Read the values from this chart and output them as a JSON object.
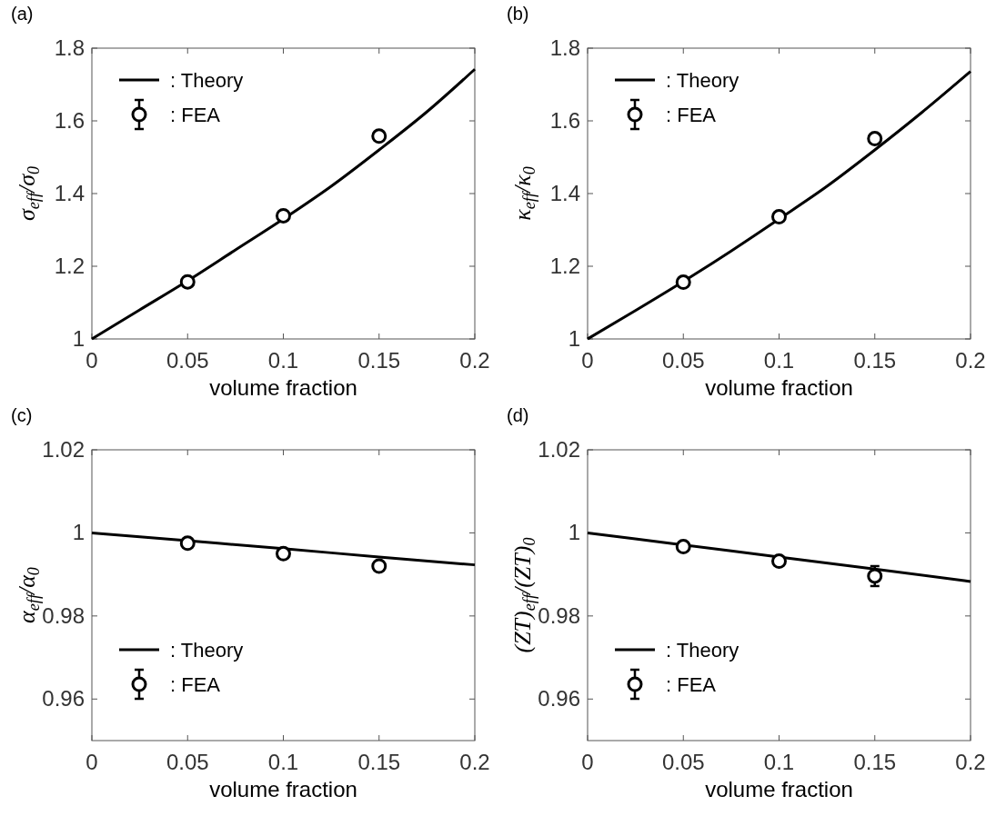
{
  "chart_data": [
    {
      "type": "line",
      "title": "(a)",
      "xlabel": "volume fraction",
      "ylabel": "σ$_{eff}$/σ$_{0}$",
      "xlim": [
        0,
        0.2
      ],
      "xticks": [
        0,
        0.05,
        0.1,
        0.15,
        0.2
      ],
      "ylim": [
        1,
        1.8
      ],
      "yticks": [
        1,
        1.2,
        1.4,
        1.6,
        1.8
      ],
      "grid": false,
      "legend": "top left",
      "series": [
        {
          "name": ": Theory",
          "type": "line",
          "color": "#000000",
          "marker": "none",
          "line_style": "solid",
          "x": [
            0,
            0.025,
            0.05,
            0.075,
            0.1,
            0.125,
            0.15,
            0.175,
            0.2
          ],
          "values": [
            1,
            1.08,
            1.16,
            1.245,
            1.33,
            1.42,
            1.52,
            1.625,
            1.742
          ]
        },
        {
          "name": ": FEA",
          "type": "scatter",
          "color": "#000000",
          "marker": "circle",
          "x": [
            0.05,
            0.1,
            0.15
          ],
          "values": [
            1.157,
            1.339,
            1.558
          ]
        }
      ]
    },
    {
      "type": "line",
      "title": "(b)",
      "xlabel": "volume fraction",
      "ylabel": "κ$_{eff}$/κ$_{0}$",
      "xlim": [
        0,
        0.2
      ],
      "xticks": [
        0,
        0.05,
        0.1,
        0.15,
        0.2
      ],
      "ylim": [
        1,
        1.8
      ],
      "yticks": [
        1,
        1.2,
        1.4,
        1.6,
        1.8
      ],
      "grid": false,
      "legend": "top left",
      "series": [
        {
          "name": ": Theory",
          "type": "line",
          "color": "#000000",
          "marker": "none",
          "line_style": "solid",
          "x": [
            0,
            0.025,
            0.05,
            0.075,
            0.1,
            0.125,
            0.15,
            0.175,
            0.2
          ],
          "values": [
            1,
            1.078,
            1.158,
            1.242,
            1.33,
            1.42,
            1.52,
            1.625,
            1.736
          ]
        },
        {
          "name": ": FEA",
          "type": "scatter",
          "color": "#000000",
          "marker": "circle",
          "x": [
            0.05,
            0.1,
            0.15
          ],
          "values": [
            1.156,
            1.336,
            1.551
          ]
        }
      ]
    },
    {
      "type": "line",
      "title": "(c)",
      "xlabel": "volume fraction",
      "ylabel": "α$_{eff}$/α$_{0}$",
      "xlim": [
        0,
        0.2
      ],
      "xticks": [
        0,
        0.05,
        0.1,
        0.15,
        0.2
      ],
      "ylim": [
        0.95,
        1.02
      ],
      "yticks": [
        0.96,
        0.98,
        1,
        1.02
      ],
      "grid": false,
      "legend": "bottom left",
      "series": [
        {
          "name": ": Theory",
          "type": "line",
          "color": "#000000",
          "marker": "none",
          "line_style": "solid",
          "x": [
            0,
            0.05,
            0.1,
            0.15,
            0.2
          ],
          "values": [
            1,
            0.9981,
            0.9962,
            0.9942,
            0.9923
          ]
        },
        {
          "name": ": FEA",
          "type": "scatter",
          "color": "#000000",
          "marker": "circle",
          "x": [
            0.05,
            0.1,
            0.15
          ],
          "values": [
            0.9975,
            0.995,
            0.992
          ]
        }
      ]
    },
    {
      "type": "line",
      "title": "(d)",
      "xlabel": "volume fraction",
      "ylabel": "(ZT)$_{eff}$/(ZT)$_{0}$",
      "xlim": [
        0,
        0.2
      ],
      "xticks": [
        0,
        0.05,
        0.1,
        0.15,
        0.2
      ],
      "ylim": [
        0.95,
        1.02
      ],
      "yticks": [
        0.96,
        0.98,
        1,
        1.02
      ],
      "grid": false,
      "legend": "bottom left",
      "series": [
        {
          "name": ": Theory",
          "type": "line",
          "color": "#000000",
          "marker": "none",
          "line_style": "solid",
          "x": [
            0,
            0.05,
            0.1,
            0.15,
            0.2
          ],
          "values": [
            1,
            0.9971,
            0.9942,
            0.9913,
            0.9883
          ]
        },
        {
          "name": ": FEA",
          "type": "scatter",
          "color": "#000000",
          "marker": "circle",
          "x": [
            0.05,
            0.1,
            0.15
          ],
          "values": [
            0.9967,
            0.9932,
            0.9896
          ],
          "errors": [
            null,
            null,
            0.0024
          ]
        }
      ]
    }
  ]
}
